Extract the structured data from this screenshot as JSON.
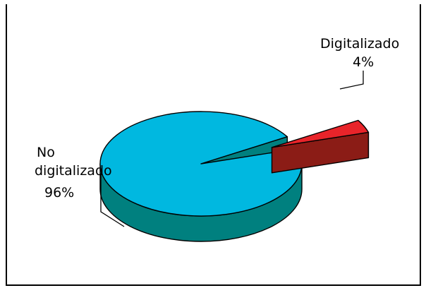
{
  "chart_data": {
    "type": "pie",
    "style": "3d-exploded",
    "title": "",
    "slices": [
      {
        "name": "No digitalizado",
        "label_lines": [
          "No",
          "digitalizado"
        ],
        "percent_label": "96%",
        "value": 96,
        "color": "#00b8e0",
        "side_color": "#00807f"
      },
      {
        "name": "Digitalizado",
        "label_lines": [
          "Digitalizado"
        ],
        "percent_label": "4%",
        "value": 4,
        "color": "#e8242a",
        "side_color": "#8b1c16"
      }
    ],
    "legend": "none",
    "data_labels": "category and percent"
  }
}
